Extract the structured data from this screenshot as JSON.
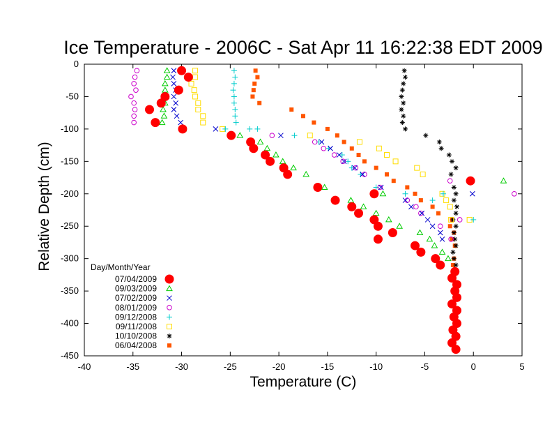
{
  "chart_data": {
    "type": "scatter",
    "title": "Ice Temperature - 2006C - Sat Apr 11 16:22:38 EDT 2009",
    "xlabel": "Temperature (C)",
    "ylabel": "Relative Depth (cm)",
    "xlim": [
      -40,
      5
    ],
    "ylim": [
      -450,
      0
    ],
    "xticks": [
      -40,
      -35,
      -30,
      -25,
      -20,
      -15,
      -10,
      -5,
      0,
      5
    ],
    "yticks": [
      0,
      -50,
      -100,
      -150,
      -200,
      -250,
      -300,
      -350,
      -400,
      -450
    ],
    "grid": false,
    "legend_title": "Day/Month/Year",
    "legend_position": "bottom-left",
    "series": [
      {
        "name": "07/04/2009",
        "color": "#ff0000",
        "marker": "filled-circle",
        "points": [
          [
            -30,
            -10
          ],
          [
            -29.3,
            -20
          ],
          [
            -30.3,
            -40
          ],
          [
            -31.7,
            -50
          ],
          [
            -32.1,
            -60
          ],
          [
            -33.3,
            -70
          ],
          [
            -32.7,
            -90
          ],
          [
            -29.9,
            -100
          ],
          [
            -24.9,
            -110
          ],
          [
            -22.9,
            -120
          ],
          [
            -22.6,
            -130
          ],
          [
            -21.4,
            -140
          ],
          [
            -20.9,
            -150
          ],
          [
            -19.5,
            -160
          ],
          [
            -19.1,
            -170
          ],
          [
            -16,
            -190
          ],
          [
            -10.2,
            -200
          ],
          [
            -14.2,
            -210
          ],
          [
            -12.5,
            -220
          ],
          [
            -11.8,
            -230
          ],
          [
            -10.2,
            -240
          ],
          [
            -9.8,
            -250
          ],
          [
            -8.3,
            -260
          ],
          [
            -9.8,
            -270
          ],
          [
            -6,
            -280
          ],
          [
            -5.4,
            -290
          ],
          [
            -3.9,
            -300
          ],
          [
            -3.4,
            -310
          ],
          [
            -1.9,
            -320
          ],
          [
            -2.2,
            -330
          ],
          [
            -1.7,
            -340
          ],
          [
            -1.9,
            -350
          ],
          [
            -1.7,
            -360
          ],
          [
            -2.2,
            -370
          ],
          [
            -1.7,
            -380
          ],
          [
            -2,
            -390
          ],
          [
            -1.7,
            -400
          ],
          [
            -2.1,
            -410
          ],
          [
            -1.8,
            -420
          ],
          [
            -2.2,
            -430
          ],
          [
            -1.8,
            -440
          ],
          [
            -0.3,
            -180
          ]
        ]
      },
      {
        "name": "09/03/2009",
        "color": "#00cc00",
        "marker": "triangle",
        "points": [
          [
            -31.5,
            -10
          ],
          [
            -31.5,
            -20
          ],
          [
            -31.7,
            -30
          ],
          [
            -31.7,
            -40
          ],
          [
            -31.6,
            -50
          ],
          [
            -31.7,
            -60
          ],
          [
            -31.9,
            -70
          ],
          [
            -31.8,
            -80
          ],
          [
            -32,
            -90
          ],
          [
            -29.8,
            -100
          ],
          [
            -24,
            -110
          ],
          [
            -21.9,
            -120
          ],
          [
            -21.2,
            -130
          ],
          [
            -20.3,
            -140
          ],
          [
            -19.6,
            -150
          ],
          [
            -18.5,
            -160
          ],
          [
            -17.2,
            -170
          ],
          [
            -15.3,
            -190
          ],
          [
            -9.3,
            -200
          ],
          [
            -12.6,
            -210
          ],
          [
            -11.3,
            -220
          ],
          [
            -10,
            -230
          ],
          [
            -8.7,
            -240
          ],
          [
            -7.6,
            -250
          ],
          [
            -5.5,
            -260
          ],
          [
            -4.5,
            -270
          ],
          [
            -4,
            -280
          ],
          [
            -3.2,
            -290
          ],
          [
            -2.6,
            -300
          ],
          [
            3.1,
            -180
          ]
        ]
      },
      {
        "name": "07/02/2009",
        "color": "#0000cc",
        "marker": "x",
        "points": [
          [
            -30.8,
            -10
          ],
          [
            -30.9,
            -20
          ],
          [
            -30.8,
            -30
          ],
          [
            -30.6,
            -40
          ],
          [
            -30.8,
            -50
          ],
          [
            -30.6,
            -60
          ],
          [
            -30.8,
            -70
          ],
          [
            -30.5,
            -80
          ],
          [
            -30.1,
            -90
          ],
          [
            -29.9,
            -100
          ],
          [
            -26.5,
            -100
          ],
          [
            -19.8,
            -110
          ],
          [
            -15.6,
            -120
          ],
          [
            -14.7,
            -130
          ],
          [
            -13.8,
            -140
          ],
          [
            -13.3,
            -150
          ],
          [
            -12.2,
            -160
          ],
          [
            -11.4,
            -170
          ],
          [
            -9.5,
            -190
          ],
          [
            -7,
            -210
          ],
          [
            -6.4,
            -220
          ],
          [
            -5.3,
            -230
          ],
          [
            -4.7,
            -240
          ],
          [
            -4.2,
            -250
          ],
          [
            -3.4,
            -260
          ],
          [
            -3.2,
            -270
          ],
          [
            -0.1,
            -200
          ],
          [
            -0.3,
            -180
          ]
        ]
      },
      {
        "name": "08/01/2009",
        "color": "#cc00cc",
        "marker": "circle",
        "points": [
          [
            -34.6,
            -10
          ],
          [
            -34.8,
            -20
          ],
          [
            -34.9,
            -30
          ],
          [
            -34.7,
            -40
          ],
          [
            -35.2,
            -50
          ],
          [
            -34.9,
            -60
          ],
          [
            -34.8,
            -70
          ],
          [
            -34.9,
            -80
          ],
          [
            -34.9,
            -90
          ],
          [
            -20.7,
            -110
          ],
          [
            -16.3,
            -120
          ],
          [
            -15.4,
            -130
          ],
          [
            -14.3,
            -140
          ],
          [
            -13.4,
            -150
          ],
          [
            -12.1,
            -160
          ],
          [
            -11.2,
            -170
          ],
          [
            -9.6,
            -190
          ],
          [
            -6.8,
            -210
          ],
          [
            -5.9,
            -220
          ],
          [
            -5.4,
            -230
          ],
          [
            -3.4,
            -250
          ],
          [
            -2.3,
            -270
          ],
          [
            -1.4,
            -240
          ],
          [
            4.2,
            -200
          ],
          [
            -2.4,
            -180
          ]
        ]
      },
      {
        "name": "09/12/2008",
        "color": "#00cccc",
        "marker": "plus",
        "points": [
          [
            -24.6,
            -10
          ],
          [
            -24.5,
            -20
          ],
          [
            -24.6,
            -30
          ],
          [
            -24.7,
            -40
          ],
          [
            -24.6,
            -50
          ],
          [
            -24.6,
            -60
          ],
          [
            -24.5,
            -70
          ],
          [
            -24.5,
            -80
          ],
          [
            -24.4,
            -90
          ],
          [
            -23,
            -100
          ],
          [
            -25.5,
            -100
          ],
          [
            -22.2,
            -100
          ],
          [
            -18.4,
            -110
          ],
          [
            -15.9,
            -120
          ],
          [
            -14.9,
            -130
          ],
          [
            -13.5,
            -140
          ],
          [
            -12.9,
            -150
          ],
          [
            -12.5,
            -160
          ],
          [
            -11.6,
            -170
          ],
          [
            -10,
            -190
          ],
          [
            -7,
            -200
          ],
          [
            -4.2,
            -210
          ],
          [
            -3.1,
            -200
          ],
          [
            0,
            -240
          ]
        ]
      },
      {
        "name": "09/11/2008",
        "color": "#ffdd00",
        "marker": "square",
        "points": [
          [
            -28.6,
            -10
          ],
          [
            -28.6,
            -20
          ],
          [
            -29,
            -30
          ],
          [
            -28.7,
            -40
          ],
          [
            -28.6,
            -50
          ],
          [
            -28.3,
            -60
          ],
          [
            -28.3,
            -70
          ],
          [
            -27.8,
            -80
          ],
          [
            -27.8,
            -90
          ],
          [
            -25.8,
            -100
          ],
          [
            -16.8,
            -110
          ],
          [
            -11.7,
            -120
          ],
          [
            -9.7,
            -130
          ],
          [
            -8.9,
            -140
          ],
          [
            -8,
            -150
          ],
          [
            -5.8,
            -160
          ],
          [
            -5.2,
            -170
          ],
          [
            -3.2,
            -200
          ],
          [
            -2.8,
            -210
          ],
          [
            -2.4,
            -220
          ],
          [
            -2.3,
            -240
          ],
          [
            -0.4,
            -240
          ]
        ]
      },
      {
        "name": "10/10/2008",
        "color": "#000000",
        "marker": "star",
        "points": [
          [
            -7.1,
            -10
          ],
          [
            -7,
            -20
          ],
          [
            -7.2,
            -30
          ],
          [
            -7.3,
            -40
          ],
          [
            -7.4,
            -50
          ],
          [
            -7.2,
            -60
          ],
          [
            -7.4,
            -70
          ],
          [
            -7.2,
            -80
          ],
          [
            -7.3,
            -90
          ],
          [
            -7,
            -100
          ],
          [
            -4.9,
            -110
          ],
          [
            -3.5,
            -120
          ],
          [
            -3.3,
            -130
          ],
          [
            -2.5,
            -140
          ],
          [
            -2.2,
            -150
          ],
          [
            -1.8,
            -160
          ],
          [
            -2.3,
            -170
          ],
          [
            -2,
            -190
          ],
          [
            -1.8,
            -200
          ],
          [
            -2,
            -210
          ],
          [
            -1.7,
            -220
          ],
          [
            -1.8,
            -230
          ],
          [
            -2.1,
            -240
          ],
          [
            -1.8,
            -250
          ],
          [
            -2,
            -260
          ],
          [
            -1.9,
            -270
          ],
          [
            -1.8,
            -280
          ],
          [
            -2.1,
            -290
          ],
          [
            -2,
            -300
          ],
          [
            -1.8,
            -310
          ],
          [
            -0.2,
            -180
          ]
        ]
      },
      {
        "name": "06/04/2008",
        "color": "#ff5500",
        "marker": "filled-square",
        "points": [
          [
            -22.4,
            -10
          ],
          [
            -22.2,
            -20
          ],
          [
            -22.5,
            -30
          ],
          [
            -22.6,
            -40
          ],
          [
            -22.7,
            -50
          ],
          [
            -22,
            -60
          ],
          [
            -18.7,
            -70
          ],
          [
            -17.5,
            -80
          ],
          [
            -16.4,
            -90
          ],
          [
            -15,
            -100
          ],
          [
            -14,
            -110
          ],
          [
            -13.3,
            -120
          ],
          [
            -12.5,
            -130
          ],
          [
            -11.8,
            -140
          ],
          [
            -11.2,
            -150
          ],
          [
            -10,
            -160
          ],
          [
            -8.9,
            -170
          ],
          [
            -8.2,
            -180
          ],
          [
            -6.8,
            -190
          ],
          [
            -6,
            -200
          ],
          [
            -5.4,
            -210
          ],
          [
            -4.2,
            -220
          ],
          [
            -3.6,
            -230
          ],
          [
            -2.2,
            -240
          ],
          [
            -2.4,
            -250
          ],
          [
            -2,
            -260
          ],
          [
            -2.2,
            -270
          ],
          [
            -1.9,
            -280
          ],
          [
            -2,
            -300
          ],
          [
            -2.1,
            -310
          ],
          [
            -1.8,
            -320
          ],
          [
            -2.1,
            -330
          ],
          [
            -1.9,
            -340
          ],
          [
            -2,
            -350
          ],
          [
            -1.8,
            -360
          ],
          [
            -2.1,
            -370
          ],
          [
            -1.8,
            -380
          ],
          [
            -2,
            -390
          ],
          [
            -1.9,
            -400
          ],
          [
            -2.1,
            -410
          ],
          [
            -1.8,
            -420
          ],
          [
            -2.1,
            -430
          ],
          [
            -1.9,
            -440
          ],
          [
            -0.3,
            -180
          ]
        ]
      }
    ]
  }
}
